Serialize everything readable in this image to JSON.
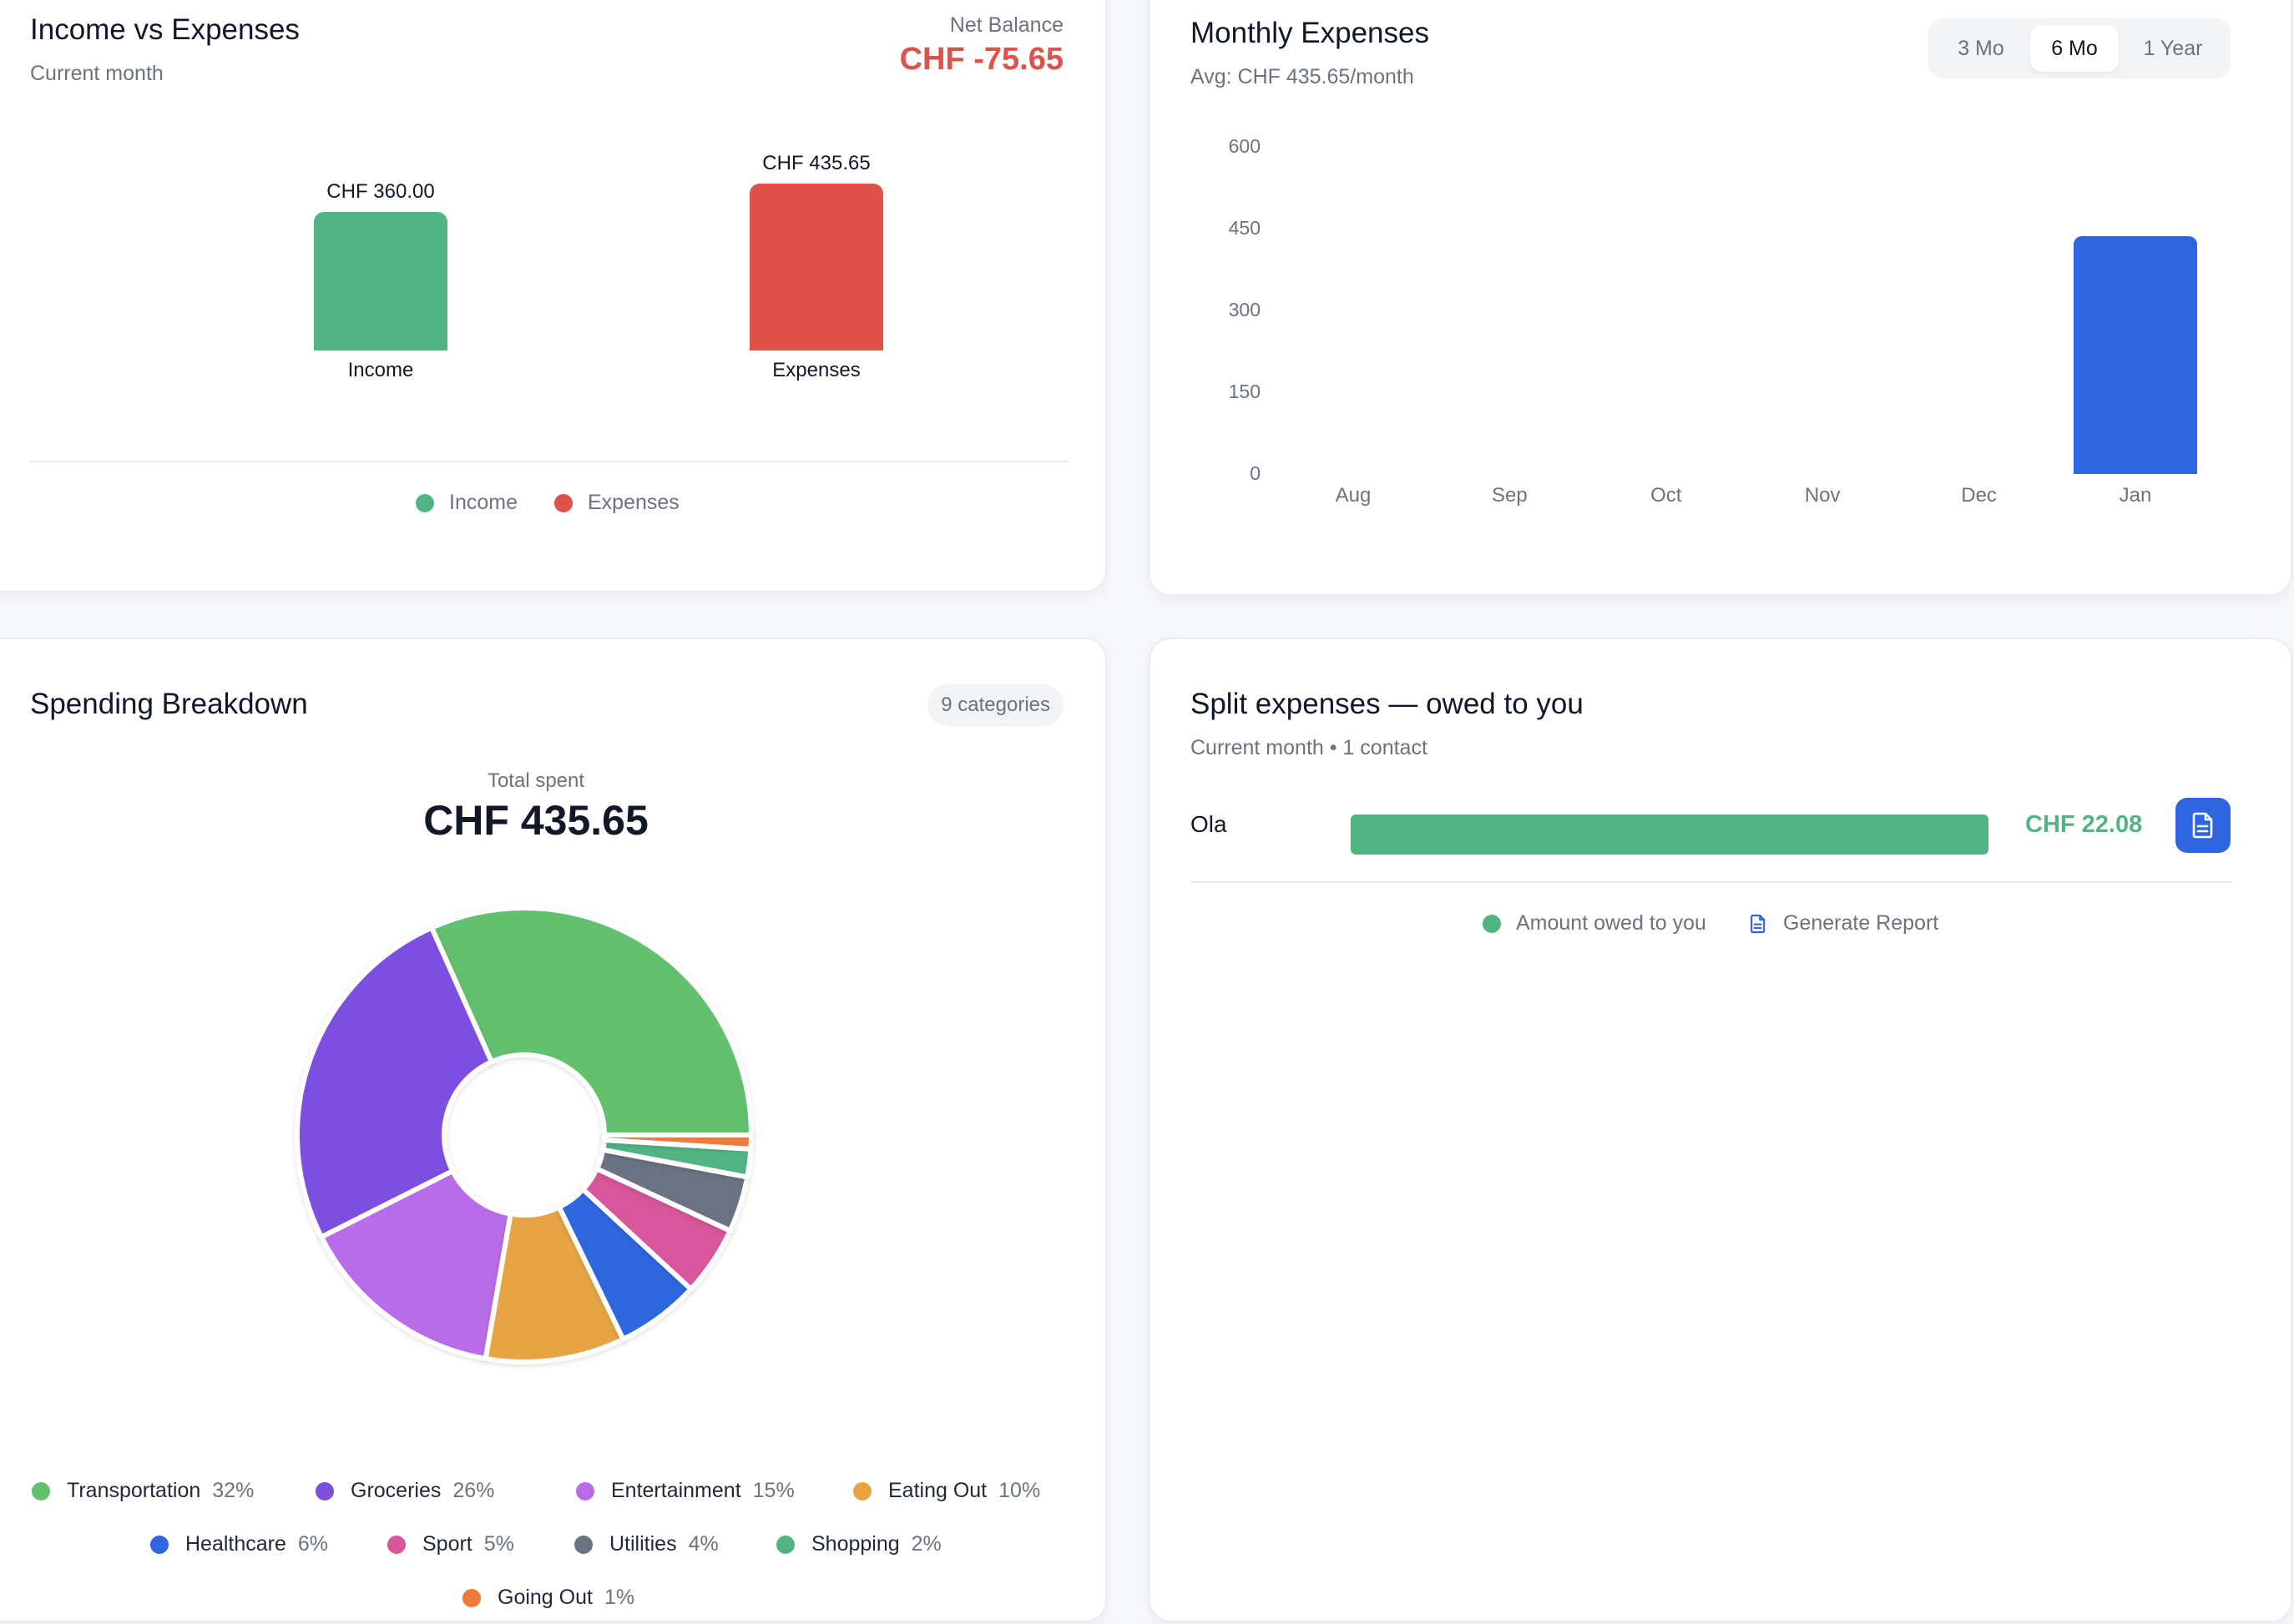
{
  "income_vs_expenses": {
    "title": "Income vs Expenses",
    "subtitle": "Current month",
    "net_balance_label": "Net Balance",
    "net_balance_value": "CHF -75.65",
    "legend": [
      "Income",
      "Expenses"
    ],
    "colors": {
      "income": "#52b483",
      "expenses": "#df524a"
    },
    "chart_data": {
      "type": "bar",
      "categories": [
        "Income",
        "Expenses"
      ],
      "values": [
        360.0,
        435.65
      ],
      "value_labels": [
        "CHF 360.00",
        "CHF 435.65"
      ],
      "title": "",
      "xlabel": "",
      "ylabel": "",
      "ylim": [
        0,
        450
      ]
    }
  },
  "monthly_expenses": {
    "title": "Monthly Expenses",
    "subtitle": "Avg: CHF 435.65/month",
    "ranges": [
      "3 Mo",
      "6 Mo",
      "1 Year"
    ],
    "active_range": "6 Mo",
    "bar_color": "#2f66e0",
    "chart_data": {
      "type": "bar",
      "categories": [
        "Aug",
        "Sep",
        "Oct",
        "Nov",
        "Dec",
        "Jan"
      ],
      "values": [
        0,
        0,
        0,
        0,
        0,
        435.65
      ],
      "yticks": [
        "600",
        "450",
        "300",
        "150",
        "0"
      ],
      "title": "",
      "xlabel": "",
      "ylabel": "",
      "ylim": [
        0,
        600
      ]
    }
  },
  "spending_breakdown": {
    "title": "Spending Breakdown",
    "badge": "9 categories",
    "total_label": "Total spent",
    "total_value": "CHF 435.65",
    "chart_data": {
      "type": "pie",
      "donut": true,
      "categories": [
        "Transportation",
        "Groceries",
        "Entertainment",
        "Eating Out",
        "Healthcare",
        "Sport",
        "Utilities",
        "Shopping",
        "Going Out"
      ],
      "values": [
        32,
        26,
        15,
        10,
        6,
        5,
        4,
        2,
        1
      ],
      "percent_labels": [
        "32%",
        "26%",
        "15%",
        "10%",
        "6%",
        "5%",
        "4%",
        "2%",
        "1%"
      ],
      "colors": [
        "#62c06e",
        "#7c4fe0",
        "#b86ce8",
        "#e7a445",
        "#2f66e0",
        "#d8579b",
        "#6b7383",
        "#52b483",
        "#ef7a3a"
      ],
      "title": ""
    }
  },
  "split_expenses": {
    "title": "Split expenses — owed to you",
    "subtitle": "Current month • 1 contact",
    "rows": [
      {
        "name": "Ola",
        "amount": "CHF 22.08",
        "fraction": 1.0
      }
    ],
    "legend_label": "Amount owed to you",
    "report_label": "Generate Report",
    "color": "#52b483",
    "button_color": "#2f66e0"
  }
}
